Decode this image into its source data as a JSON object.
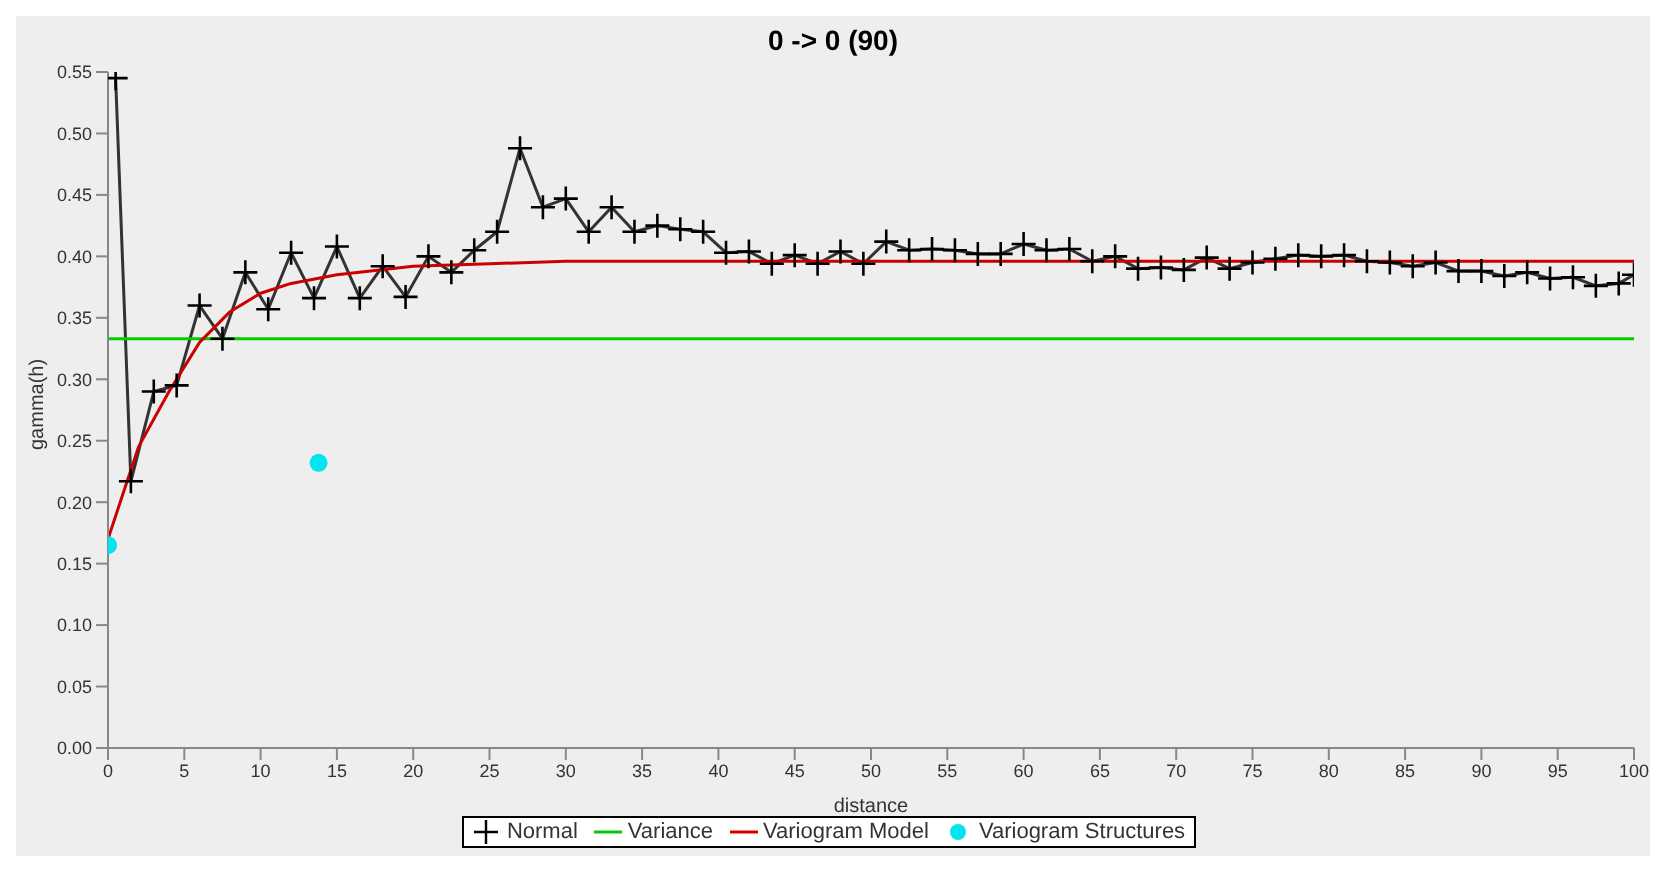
{
  "chart_data": {
    "type": "line",
    "title": "0 -> 0 (90)",
    "xlabel": "distance",
    "ylabel": "gamma(h)",
    "xlim": [
      0,
      100
    ],
    "xticks": [
      0,
      5,
      10,
      15,
      20,
      25,
      30,
      35,
      40,
      45,
      50,
      55,
      60,
      65,
      70,
      75,
      80,
      85,
      90,
      95,
      100
    ],
    "ylim": [
      0,
      0.55
    ],
    "yticks": [
      {
        "value": 0,
        "label": "0.00"
      },
      0.05,
      {
        "value": 0.1,
        "label": "0.10"
      },
      0.15,
      {
        "value": 0.2,
        "label": "0.20"
      },
      0.25,
      {
        "value": 0.3,
        "label": "0.30"
      },
      0.35,
      {
        "value": 0.4,
        "label": "0.40"
      },
      0.45,
      {
        "value": 0.5,
        "label": "0.50"
      },
      0.55
    ],
    "grid": false,
    "legend": "bottom",
    "series": [
      {
        "name": "Normal",
        "marker": "cross",
        "color": "#333333",
        "x": [
          0.5,
          1.5,
          3,
          4.5,
          6,
          7.5,
          9,
          10.5,
          12,
          13.5,
          15,
          16.5,
          18,
          19.5,
          21,
          22.5,
          24,
          25.5,
          27,
          28.5,
          30,
          31.5,
          33,
          34.5,
          36,
          37.5,
          39,
          40.5,
          42,
          43.5,
          45,
          46.5,
          48,
          49.5,
          51,
          52.5,
          54,
          55.5,
          57,
          58.5,
          60,
          61.5,
          63,
          64.5,
          66,
          67.5,
          69,
          70.5,
          72,
          73.5,
          75,
          76.5,
          78,
          79.5,
          81,
          82.5,
          84,
          85.5,
          87,
          88.5,
          90,
          91.5,
          93,
          94.5,
          96,
          97.5,
          99,
          100
        ],
        "values": [
          0.545,
          0.217,
          0.29,
          0.295,
          0.36,
          0.333,
          0.387,
          0.357,
          0.403,
          0.366,
          0.408,
          0.366,
          0.392,
          0.367,
          0.4,
          0.387,
          0.405,
          0.42,
          0.488,
          0.44,
          0.447,
          0.42,
          0.44,
          0.42,
          0.425,
          0.422,
          0.42,
          0.403,
          0.404,
          0.394,
          0.401,
          0.394,
          0.404,
          0.394,
          0.412,
          0.405,
          0.406,
          0.405,
          0.402,
          0.402,
          0.41,
          0.405,
          0.406,
          0.396,
          0.4,
          0.39,
          0.391,
          0.389,
          0.399,
          0.39,
          0.395,
          0.398,
          0.401,
          0.4,
          0.401,
          0.396,
          0.395,
          0.392,
          0.395,
          0.388,
          0.388,
          0.384,
          0.387,
          0.382,
          0.383,
          0.376,
          0.378,
          0.385
        ]
      },
      {
        "name": "Variance",
        "marker": "none",
        "color": "#00cc00",
        "x": [
          0,
          100
        ],
        "values": [
          0.333,
          0.333
        ]
      },
      {
        "name": "Variogram Model",
        "marker": "none",
        "color": "#cc0000",
        "x": [
          0,
          2,
          4,
          6,
          8,
          10,
          12,
          15,
          20,
          25,
          30,
          40,
          60,
          80,
          100
        ],
        "values": [
          0.17,
          0.245,
          0.29,
          0.33,
          0.355,
          0.37,
          0.378,
          0.385,
          0.392,
          0.394,
          0.396,
          0.396,
          0.396,
          0.396,
          0.396
        ]
      },
      {
        "name": "Variogram Structures",
        "type": "scatter",
        "marker": "circle",
        "color": "#00e5ee",
        "x": [
          0,
          13.8
        ],
        "values": [
          0.165,
          0.232
        ]
      }
    ]
  }
}
